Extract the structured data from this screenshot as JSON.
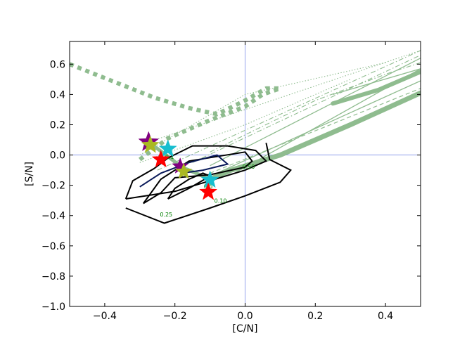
{
  "chart_data": {
    "type": "line",
    "xlabel": "[C/N]",
    "ylabel": "[S/N]",
    "xlim": [
      -0.5,
      0.5
    ],
    "ylim": [
      -1.0,
      0.75
    ],
    "xticks": [
      "−0.4",
      "−0.2",
      "0.0",
      "0.2",
      "0.4"
    ],
    "xtick_values": [
      -0.4,
      -0.2,
      0.0,
      0.2,
      0.4
    ],
    "yticks": [
      "0.6",
      "0.4",
      "0.2",
      "0.0",
      "−0.2",
      "−0.4",
      "−0.6",
      "−0.8",
      "−1.0"
    ],
    "ytick_values": [
      0.6,
      0.4,
      0.2,
      0.0,
      -0.2,
      -0.4,
      -0.6,
      -0.8,
      -1.0
    ],
    "reference_lines": {
      "x": 0.0,
      "y": 0.0,
      "color": "#7b8ee8"
    },
    "contour_labels": [
      {
        "text": "0.50",
        "x": 0.01,
        "y": -0.09
      },
      {
        "text": "0.25",
        "x": -0.225,
        "y": -0.405
      },
      {
        "text": "0.10",
        "x": -0.07,
        "y": -0.315
      },
      {
        "text": "0.5",
        "x": -0.105,
        "y": -0.22
      },
      {
        "text": "0.1",
        "x": -0.215,
        "y": -0.025
      }
    ],
    "contours": [
      {
        "name": "0.50",
        "color": "#000000",
        "x": [
          -0.29,
          -0.24,
          -0.16,
          -0.08,
          0.0,
          0.02,
          0.0,
          -0.1,
          -0.2,
          -0.24,
          -0.29
        ],
        "y": [
          -0.32,
          -0.16,
          -0.04,
          -0.01,
          0.02,
          -0.04,
          -0.08,
          -0.13,
          -0.15,
          -0.25,
          -0.32
        ]
      },
      {
        "name": "0.25",
        "color": "#000000",
        "x": [
          -0.34,
          -0.32,
          -0.26,
          -0.22,
          -0.15,
          -0.05,
          0.03,
          0.06,
          0.0,
          -0.1,
          -0.2,
          -0.34
        ],
        "y": [
          -0.29,
          -0.17,
          -0.09,
          -0.02,
          0.06,
          0.06,
          0.03,
          -0.04,
          -0.1,
          -0.17,
          -0.24,
          -0.29
        ]
      },
      {
        "name": "0.10",
        "color": "#000000",
        "x": [
          -0.34,
          -0.23,
          -0.1,
          0.0,
          0.1,
          0.13,
          0.07,
          0.06
        ],
        "y": [
          -0.35,
          -0.45,
          -0.35,
          -0.27,
          -0.18,
          -0.1,
          -0.03,
          0.08
        ]
      },
      {
        "name": "inner",
        "color": "#000000",
        "x": [
          -0.22,
          -0.2,
          -0.16,
          -0.12,
          -0.1,
          -0.16,
          -0.22
        ],
        "y": [
          -0.29,
          -0.22,
          -0.16,
          -0.12,
          -0.14,
          -0.22,
          -0.29
        ]
      },
      {
        "name": "navy",
        "color": "#0a1a5a",
        "x": [
          -0.3,
          -0.24,
          -0.16,
          -0.08,
          -0.05,
          -0.12,
          -0.18
        ],
        "y": [
          -0.21,
          -0.12,
          -0.05,
          0.0,
          -0.06,
          -0.1,
          -0.12
        ]
      }
    ],
    "tracks": [
      {
        "style": "thick",
        "width": 7,
        "x": [
          -0.1,
          -0.04,
          0.1,
          0.3,
          0.5
        ],
        "y": [
          -0.16,
          -0.1,
          0.0,
          0.2,
          0.41
        ]
      },
      {
        "style": "thick",
        "width": 6,
        "x": [
          0.25,
          0.38,
          0.5
        ],
        "y": [
          0.34,
          0.43,
          0.55
        ]
      },
      {
        "style": "thick",
        "width": 5,
        "x": [
          -0.26,
          -0.18,
          -0.1
        ],
        "y": [
          0.06,
          -0.08,
          -0.16
        ]
      },
      {
        "style": "dotted-thick",
        "width": 6,
        "x": [
          -0.5,
          -0.38,
          -0.26,
          -0.16,
          -0.08,
          0.0,
          0.06,
          0.1
        ],
        "y": [
          0.6,
          0.49,
          0.38,
          0.31,
          0.27,
          0.36,
          0.44,
          0.44
        ]
      },
      {
        "style": "dotted-thick",
        "width": 6,
        "x": [
          -0.3,
          -0.22,
          -0.1,
          0.0,
          0.05,
          0.1
        ],
        "y": [
          -0.03,
          0.11,
          0.23,
          0.32,
          0.4,
          0.44
        ]
      },
      {
        "style": "solid",
        "width": 1.3,
        "x": [
          -0.1,
          0.5
        ],
        "y": [
          -0.07,
          0.64
        ]
      },
      {
        "style": "solid",
        "width": 1.3,
        "x": [
          -0.08,
          0.5
        ],
        "y": [
          -0.12,
          0.49
        ]
      },
      {
        "style": "solid",
        "width": 1.3,
        "x": [
          -0.03,
          0.5
        ],
        "y": [
          -0.12,
          0.57
        ]
      },
      {
        "style": "solid",
        "width": 1.3,
        "x": [
          0.25,
          0.5
        ],
        "y": [
          0.4,
          0.57
        ]
      },
      {
        "style": "dashed",
        "width": 1.2,
        "x": [
          -0.1,
          0.5
        ],
        "y": [
          -0.12,
          0.44
        ]
      },
      {
        "style": "dashdot",
        "width": 1.1,
        "x": [
          -0.25,
          0.5
        ],
        "y": [
          -0.1,
          0.69
        ]
      },
      {
        "style": "dashdot",
        "width": 1.1,
        "x": [
          -0.15,
          0.5
        ],
        "y": [
          -0.05,
          0.66
        ]
      },
      {
        "style": "dashdot",
        "width": 1.1,
        "x": [
          -0.1,
          0.2,
          0.42,
          0.5
        ],
        "y": [
          0.02,
          0.36,
          0.55,
          0.61
        ]
      },
      {
        "style": "dotted",
        "width": 1.1,
        "x": [
          -0.27,
          0.5
        ],
        "y": [
          0.09,
          0.69
        ]
      },
      {
        "style": "dotted",
        "width": 1.1,
        "x": [
          -0.3,
          0.0,
          0.3
        ],
        "y": [
          -0.05,
          0.2,
          0.5
        ]
      },
      {
        "style": "dotted",
        "width": 1.1,
        "x": [
          -0.3,
          0.0,
          0.4
        ],
        "y": [
          0.0,
          0.4,
          0.61
        ]
      }
    ],
    "markers": [
      {
        "color": "#800080",
        "x": -0.275,
        "y": 0.085,
        "size": 15
      },
      {
        "color": "#aab822",
        "x": -0.27,
        "y": 0.065,
        "size": 13
      },
      {
        "color": "#17becf",
        "x": -0.22,
        "y": 0.04,
        "size": 13
      },
      {
        "color": "#ff0000",
        "x": -0.24,
        "y": -0.03,
        "size": 13
      },
      {
        "color": "#800080",
        "x": -0.185,
        "y": -0.075,
        "size": 12
      },
      {
        "color": "#aab822",
        "x": -0.175,
        "y": -0.11,
        "size": 12
      },
      {
        "color": "#17becf",
        "x": -0.1,
        "y": -0.165,
        "size": 13
      },
      {
        "color": "#ff0000",
        "x": -0.105,
        "y": -0.245,
        "size": 13
      }
    ],
    "track_color": "#8fbc8f",
    "grid": false,
    "legend": "none"
  }
}
